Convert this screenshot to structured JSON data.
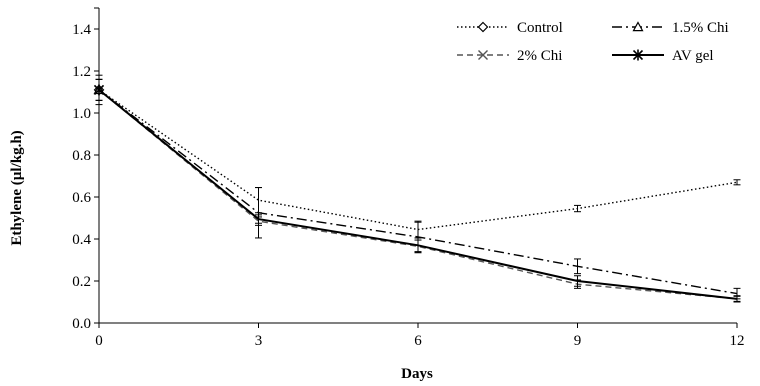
{
  "chart_data": {
    "type": "line",
    "title": "",
    "xlabel": "Days",
    "ylabel": "Ethylene  (µl/kg.h)",
    "x": [
      0,
      3,
      6,
      9,
      12
    ],
    "xlim": [
      0,
      12
    ],
    "ylim": [
      0,
      1.5
    ],
    "x_ticks": [
      "0",
      "3",
      "6",
      "9",
      "12"
    ],
    "y_ticks": [
      "0.0",
      "0.2",
      "0.4",
      "0.6",
      "0.8",
      "1.0",
      "1.2",
      "1.4"
    ],
    "grid": false,
    "legend_position": "top-right",
    "series": [
      {
        "name": "Control",
        "line_style": "dotted",
        "marker": "diamond",
        "color": "#000000",
        "values": [
          1.11,
          0.585,
          0.445,
          0.545,
          0.67
        ],
        "errors": [
          0.05,
          0.06,
          0.04,
          0.015,
          0.012
        ]
      },
      {
        "name": "1.5% Chi",
        "line_style": "dash-dot",
        "marker": "triangle",
        "color": "#000000",
        "values": [
          1.11,
          0.525,
          0.41,
          0.27,
          0.14
        ],
        "errors": [
          0.05,
          0.12,
          0.07,
          0.035,
          0.025
        ]
      },
      {
        "name": "2% Chi",
        "line_style": "dashed",
        "marker": "x",
        "color": "#555555",
        "values": [
          1.11,
          0.485,
          0.365,
          0.185,
          0.115
        ],
        "errors": [
          0.05,
          0.02,
          0.03,
          0.02,
          0.012
        ]
      },
      {
        "name": "AV gel",
        "line_style": "solid",
        "marker": "star",
        "color": "#000000",
        "values": [
          1.11,
          0.495,
          0.37,
          0.2,
          0.115
        ],
        "errors": [
          0.07,
          0.02,
          0.035,
          0.025,
          0.015
        ]
      }
    ]
  }
}
